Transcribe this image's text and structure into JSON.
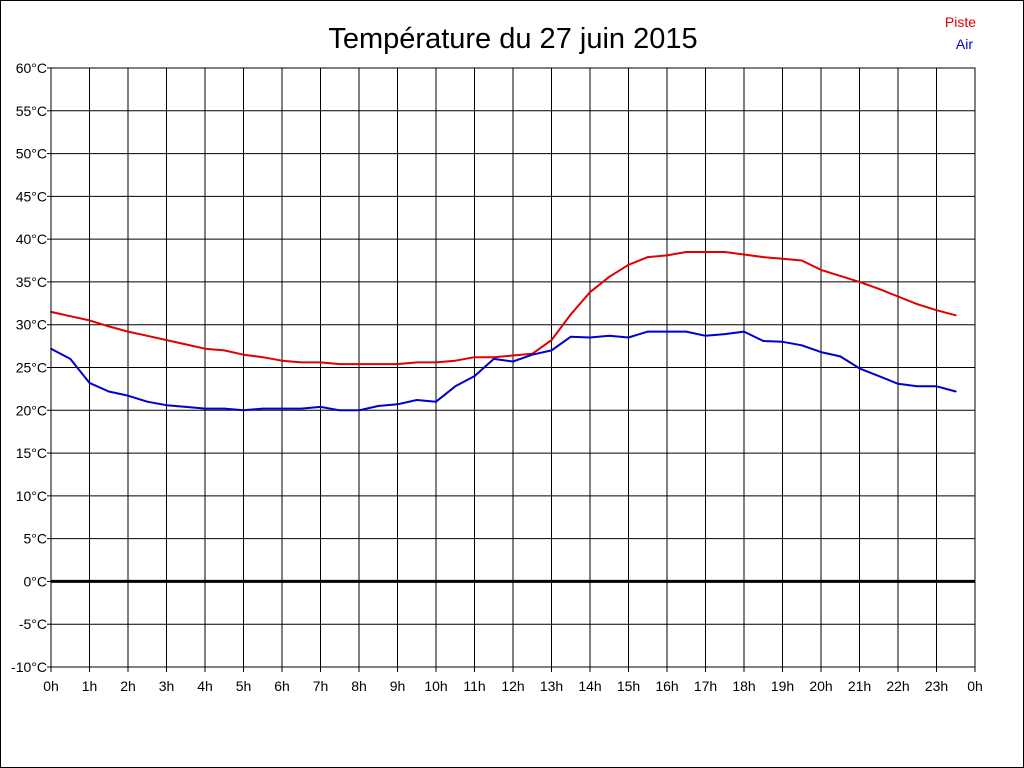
{
  "chart_data": {
    "type": "line",
    "title": "Température du 27 juin 2015",
    "xlabel": "",
    "ylabel": "",
    "x_tick_labels": [
      "0h",
      "1h",
      "2h",
      "3h",
      "4h",
      "5h",
      "6h",
      "7h",
      "8h",
      "9h",
      "10h",
      "11h",
      "12h",
      "13h",
      "14h",
      "15h",
      "16h",
      "17h",
      "18h",
      "19h",
      "20h",
      "21h",
      "22h",
      "23h",
      "0h"
    ],
    "y_tick_labels": [
      "-10°C",
      "-5°C",
      "0°C",
      "5°C",
      "10°C",
      "15°C",
      "20°C",
      "25°C",
      "30°C",
      "35°C",
      "40°C",
      "45°C",
      "50°C",
      "55°C",
      "60°C"
    ],
    "y_ticks": [
      -10,
      -5,
      0,
      5,
      10,
      15,
      20,
      25,
      30,
      35,
      40,
      45,
      50,
      55,
      60
    ],
    "xlim": [
      0,
      24
    ],
    "ylim": [
      -10,
      60
    ],
    "grid": true,
    "zero_line": true,
    "legend_position": "top-right",
    "x": [
      0,
      0.5,
      1,
      1.5,
      2,
      2.5,
      3,
      3.5,
      4,
      4.5,
      5,
      5.5,
      6,
      6.5,
      7,
      7.5,
      8,
      8.5,
      9,
      9.5,
      10,
      10.5,
      11,
      11.5,
      12,
      12.5,
      13,
      13.5,
      14,
      14.5,
      15,
      15.5,
      16,
      16.5,
      17,
      17.5,
      18,
      18.5,
      19,
      19.5,
      20,
      20.5,
      21,
      21.5,
      22,
      22.5,
      23,
      23.5
    ],
    "series": [
      {
        "name": "Piste",
        "color": "#e00000",
        "values": [
          31.5,
          31.0,
          30.5,
          29.8,
          29.2,
          28.7,
          28.2,
          27.7,
          27.2,
          27.0,
          26.5,
          26.2,
          25.8,
          25.6,
          25.6,
          25.4,
          25.4,
          25.4,
          25.4,
          25.6,
          25.6,
          25.8,
          26.2,
          26.2,
          26.4,
          26.6,
          28.2,
          31.2,
          33.8,
          35.6,
          37.0,
          37.9,
          38.1,
          38.5,
          38.5,
          38.5,
          38.2,
          37.9,
          37.7,
          37.5,
          36.4,
          35.7,
          35.0,
          34.2,
          33.3,
          32.4,
          31.7,
          31.1
        ]
      },
      {
        "name": "Air",
        "color": "#0000cc",
        "values": [
          27.2,
          26.0,
          23.2,
          22.2,
          21.7,
          21.0,
          20.6,
          20.4,
          20.2,
          20.2,
          20.0,
          20.2,
          20.2,
          20.2,
          20.4,
          20.0,
          20.0,
          20.5,
          20.7,
          21.2,
          21.0,
          22.8,
          24.0,
          26.0,
          25.7,
          26.5,
          27.0,
          28.6,
          28.5,
          28.7,
          28.5,
          29.2,
          29.2,
          29.2,
          28.7,
          28.9,
          29.2,
          28.1,
          28.0,
          27.6,
          26.8,
          26.3,
          24.9,
          24.0,
          23.1,
          22.8,
          22.8,
          22.2
        ]
      }
    ]
  }
}
